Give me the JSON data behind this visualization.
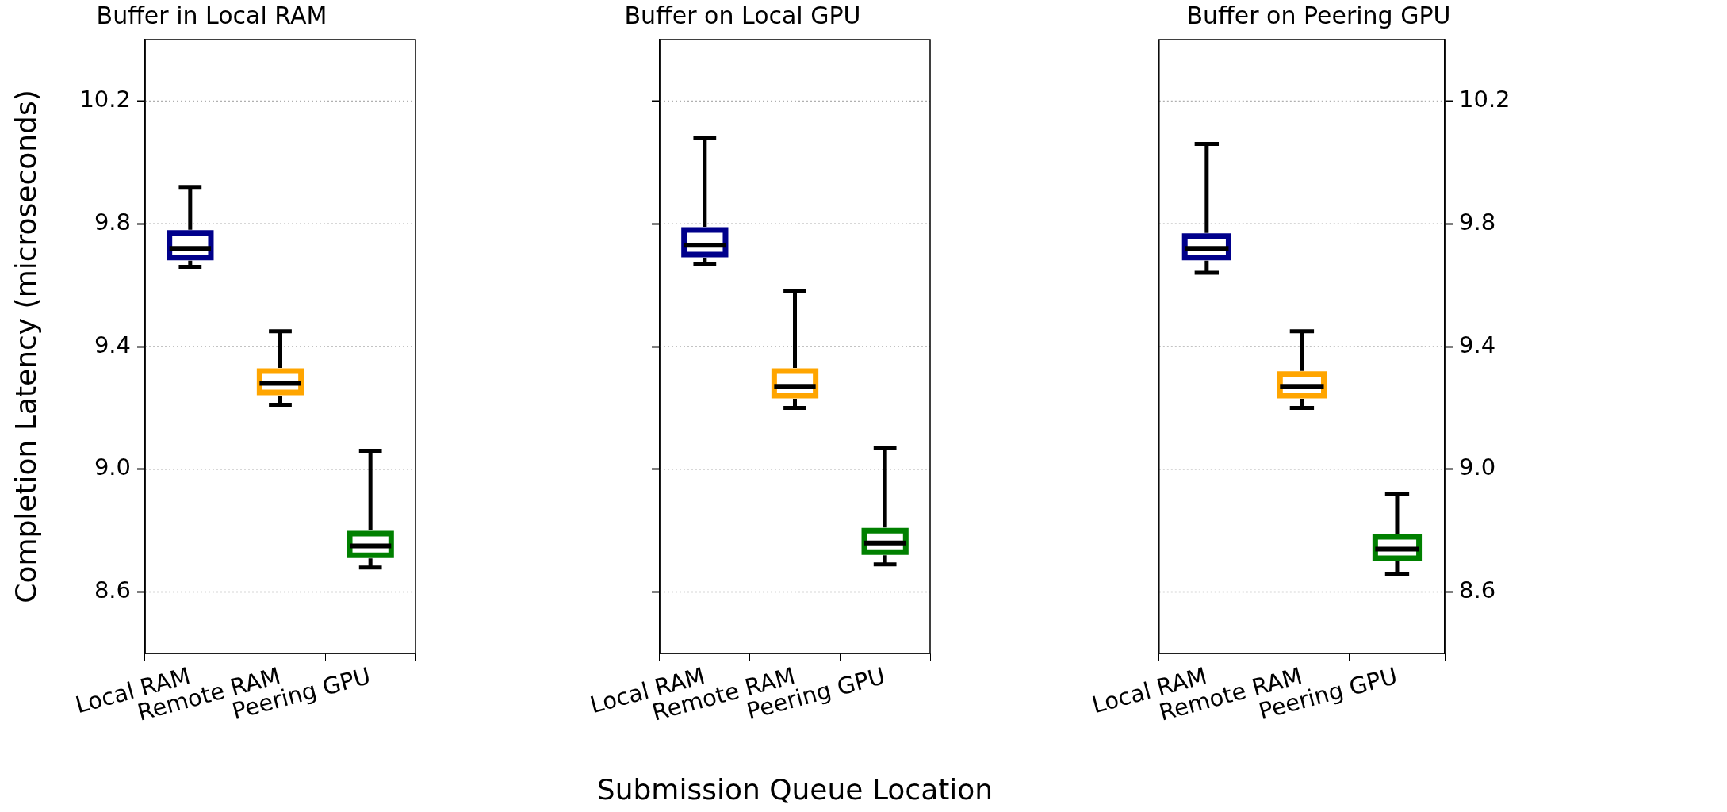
{
  "chart_data": [
    {
      "type": "box",
      "title": "Buffer in Local RAM",
      "ylabel": "Completion Latency (microseconds)",
      "categories": [
        "Local RAM",
        "Remote RAM",
        "Peering GPU"
      ],
      "ylim": [
        8.4,
        10.4
      ],
      "yticks": [
        8.6,
        {
          "value": 9,
          "label": "9.0"
        },
        9.4,
        9.8,
        10.2
      ],
      "grid": "y",
      "series": [
        {
          "colors": [
            "#00008b",
            "#ffa500",
            "#008000"
          ],
          "boxes": [
            {
              "low": 9.66,
              "q1": 9.69,
              "median": 9.72,
              "q3": 9.77,
              "high": 9.92
            },
            {
              "low": 9.21,
              "q1": 9.25,
              "median": 9.28,
              "q3": 9.32,
              "high": 9.45
            },
            {
              "low": 8.68,
              "q1": 8.72,
              "median": 8.75,
              "q3": 8.79,
              "high": 9.06
            }
          ]
        }
      ]
    },
    {
      "type": "box",
      "title": "Buffer on Local GPU",
      "xlabel": "Submission Queue Location",
      "categories": [
        "Local RAM",
        "Remote RAM",
        "Peering GPU"
      ],
      "ylim": [
        8.4,
        10.4
      ],
      "yticks": [
        8.6,
        9,
        9.4,
        9.8,
        10.2
      ],
      "grid": "y",
      "tick_labels": "x",
      "series": [
        {
          "colors": [
            "#00008b",
            "#ffa500",
            "#008000"
          ],
          "boxes": [
            {
              "low": 9.67,
              "q1": 9.7,
              "median": 9.73,
              "q3": 9.78,
              "high": 10.08
            },
            {
              "low": 9.2,
              "q1": 9.24,
              "median": 9.27,
              "q3": 9.32,
              "high": 9.58
            },
            {
              "low": 8.69,
              "q1": 8.73,
              "median": 8.76,
              "q3": 8.8,
              "high": 9.07
            }
          ]
        }
      ]
    },
    {
      "type": "box",
      "title": "Buffer on Peering GPU",
      "categories": [
        "Local RAM",
        "Remote RAM",
        "Peering GPU"
      ],
      "y2lim": [
        8.4,
        10.4
      ],
      "y2ticks": [
        8.6,
        {
          "value": 9,
          "label": "9.0"
        },
        9.4,
        9.8,
        10.2
      ],
      "grid": "y",
      "series": [
        {
          "axis": "y2",
          "colors": [
            "#00008b",
            "#ffa500",
            "#008000"
          ],
          "boxes": [
            {
              "low": 9.64,
              "q1": 9.69,
              "median": 9.72,
              "q3": 9.76,
              "high": 10.06
            },
            {
              "low": 9.2,
              "q1": 9.24,
              "median": 9.27,
              "q3": 9.31,
              "high": 9.45
            },
            {
              "low": 8.66,
              "q1": 8.71,
              "median": 8.74,
              "q3": 8.78,
              "high": 8.92
            }
          ]
        }
      ]
    }
  ]
}
